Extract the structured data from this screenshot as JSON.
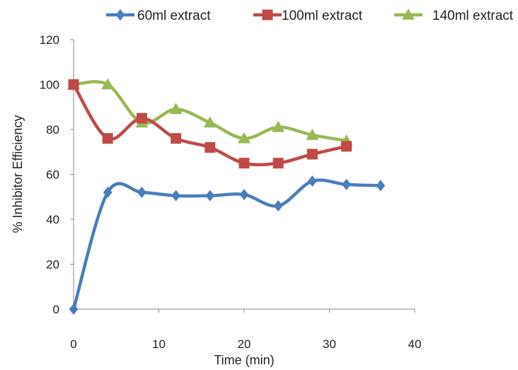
{
  "chart_data": {
    "type": "line",
    "title": "",
    "xlabel": "Time (min)",
    "ylabel": "% Inhibitor Efficiency",
    "xlim": [
      0,
      40
    ],
    "ylim": [
      0,
      120
    ],
    "x_ticks": [
      0,
      10,
      20,
      30,
      40
    ],
    "y_ticks": [
      0,
      20,
      40,
      60,
      80,
      100,
      120
    ],
    "grid": false,
    "smooth": true,
    "legend_position": "top",
    "series": [
      {
        "name": "60ml extract",
        "color": "#4a7ebb",
        "marker": "diamond",
        "x": [
          0,
          4,
          8,
          12,
          16,
          20,
          24,
          28,
          32,
          36
        ],
        "y": [
          0,
          52,
          52,
          50.5,
          50.5,
          51,
          46,
          57,
          55.5,
          55
        ]
      },
      {
        "name": "100ml extract",
        "color": "#be4b48",
        "marker": "square",
        "x": [
          0,
          4,
          8,
          12,
          16,
          20,
          24,
          28,
          32
        ],
        "y": [
          100,
          76,
          85,
          76,
          72,
          65,
          65,
          69,
          72.5
        ]
      },
      {
        "name": "140ml extract",
        "color": "#98b954",
        "marker": "triangle",
        "x": [
          0,
          4,
          8,
          12,
          16,
          20,
          24,
          28,
          32
        ],
        "y": [
          100,
          100,
          83,
          89,
          83,
          76,
          81,
          77.5,
          75
        ]
      }
    ]
  }
}
